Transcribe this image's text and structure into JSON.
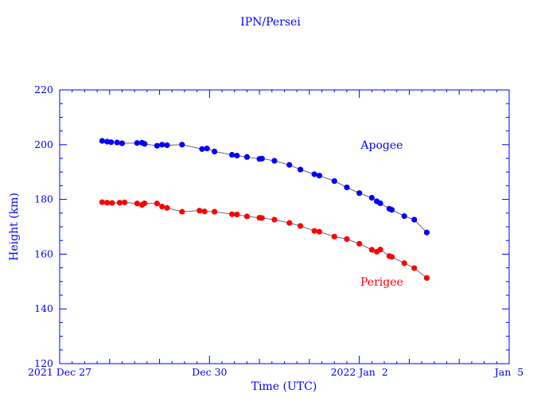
{
  "chart_data": {
    "type": "scatter",
    "title": "IPN/Persei",
    "xlabel": "Time (UTC)",
    "ylabel": "Height (km)",
    "x_unit": "days since 2021-12-27 00:00 UTC",
    "xlim": [
      0,
      9
    ],
    "ylim": [
      120,
      220
    ],
    "yticks": [
      120,
      140,
      160,
      180,
      200,
      220
    ],
    "xticks": [
      {
        "value": 0,
        "label": "2021 Dec 27"
      },
      {
        "value": 3,
        "label": "Dec 30"
      },
      {
        "value": 6,
        "label": "2022 Jan  2"
      },
      {
        "value": 9,
        "label": "Jan  5"
      }
    ],
    "grid": false,
    "colors": {
      "axis": "#0000ff",
      "text": "#0000ff",
      "apogee": "#0000ff",
      "perigee": "#ff0000",
      "connector": "#555577"
    },
    "series": [
      {
        "name": "Apogee",
        "label": "Apogee",
        "color": "#0000ff",
        "label_at": [
          6.45,
          200
        ],
        "points": [
          [
            0.85,
            201.4
          ],
          [
            0.95,
            201.1
          ],
          [
            1.03,
            200.9
          ],
          [
            1.15,
            200.8
          ],
          [
            1.25,
            200.5
          ],
          [
            1.55,
            200.6
          ],
          [
            1.65,
            200.7
          ],
          [
            1.7,
            200.3
          ],
          [
            1.95,
            199.6
          ],
          [
            2.05,
            200.0
          ],
          [
            2.15,
            199.8
          ],
          [
            2.45,
            200.0
          ],
          [
            2.85,
            198.4
          ],
          [
            2.95,
            198.6
          ],
          [
            3.1,
            197.5
          ],
          [
            3.45,
            196.3
          ],
          [
            3.55,
            196.0
          ],
          [
            3.75,
            195.5
          ],
          [
            4.0,
            194.8
          ],
          [
            4.05,
            194.9
          ],
          [
            4.3,
            194.1
          ],
          [
            4.6,
            192.6
          ],
          [
            4.82,
            190.9
          ],
          [
            5.1,
            189.2
          ],
          [
            5.2,
            188.7
          ],
          [
            5.5,
            186.7
          ],
          [
            5.75,
            184.4
          ],
          [
            6.0,
            182.3
          ],
          [
            6.25,
            180.6
          ],
          [
            6.35,
            179.3
          ],
          [
            6.42,
            178.6
          ],
          [
            6.6,
            176.6
          ],
          [
            6.65,
            176.2
          ],
          [
            6.9,
            173.9
          ],
          [
            7.1,
            172.6
          ],
          [
            7.35,
            167.9
          ]
        ]
      },
      {
        "name": "Perigee",
        "label": "Perigee",
        "color": "#ff0000",
        "label_at": [
          6.45,
          150
        ],
        "points": [
          [
            0.85,
            179.0
          ],
          [
            0.95,
            178.8
          ],
          [
            1.05,
            178.7
          ],
          [
            1.2,
            178.8
          ],
          [
            1.3,
            178.9
          ],
          [
            1.55,
            178.5
          ],
          [
            1.65,
            178.0
          ],
          [
            1.7,
            178.6
          ],
          [
            1.95,
            178.5
          ],
          [
            2.05,
            177.4
          ],
          [
            2.15,
            176.9
          ],
          [
            2.45,
            175.5
          ],
          [
            2.8,
            175.9
          ],
          [
            2.9,
            175.6
          ],
          [
            3.1,
            175.5
          ],
          [
            3.45,
            174.6
          ],
          [
            3.55,
            174.5
          ],
          [
            3.75,
            173.8
          ],
          [
            4.0,
            173.3
          ],
          [
            4.05,
            173.2
          ],
          [
            4.3,
            172.6
          ],
          [
            4.6,
            171.4
          ],
          [
            4.82,
            170.3
          ],
          [
            5.1,
            168.5
          ],
          [
            5.2,
            168.2
          ],
          [
            5.5,
            166.4
          ],
          [
            5.75,
            165.5
          ],
          [
            6.0,
            163.8
          ],
          [
            6.25,
            161.6
          ],
          [
            6.35,
            160.9
          ],
          [
            6.42,
            161.7
          ],
          [
            6.6,
            159.3
          ],
          [
            6.65,
            159.0
          ],
          [
            6.9,
            156.7
          ],
          [
            7.1,
            154.9
          ],
          [
            7.35,
            151.3
          ]
        ]
      }
    ]
  }
}
